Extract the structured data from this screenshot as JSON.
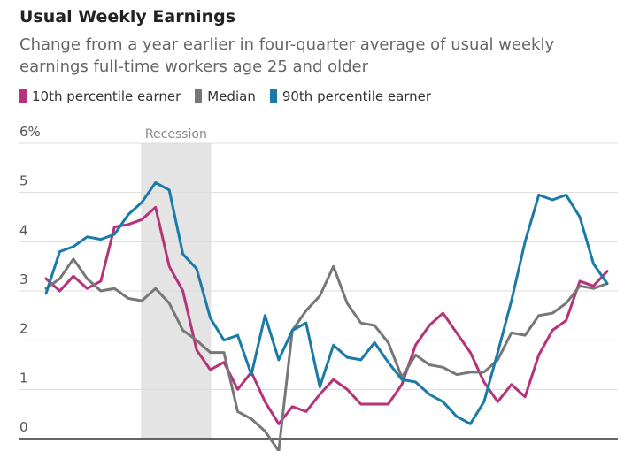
{
  "chart_data": {
    "type": "line",
    "title": "Usual Weekly Earnings",
    "subtitle": "Change from a year earlier in four-quarter average of usual weekly earnings full-time workers age 25 and older",
    "ylim": [
      0,
      6
    ],
    "yticks": [
      "6%",
      "5",
      "4",
      "3",
      "2",
      "1",
      "0"
    ],
    "ytick_values": [
      6,
      5,
      4,
      3,
      2,
      1,
      0
    ],
    "grid": true,
    "legend_position": "top-left",
    "shaded_band": {
      "label": "Recession",
      "start_index": 7,
      "end_index": 12
    },
    "series": [
      {
        "name": "10th percentile earner",
        "color": "#b5337a",
        "values": [
          3.25,
          3.0,
          3.3,
          3.05,
          3.2,
          4.3,
          4.35,
          4.45,
          4.7,
          3.5,
          3.0,
          1.8,
          1.4,
          1.55,
          1.0,
          1.35,
          0.75,
          0.3,
          0.65,
          0.55,
          0.9,
          1.2,
          1.0,
          0.7,
          0.7,
          0.7,
          1.1,
          1.9,
          2.3,
          2.55,
          2.15,
          1.75,
          1.15,
          0.75,
          1.1,
          0.85,
          1.7,
          2.2,
          2.4,
          3.2,
          3.1,
          3.4
        ]
      },
      {
        "name": "Median",
        "color": "#777777",
        "values": [
          3.05,
          3.25,
          3.65,
          3.25,
          3.0,
          3.05,
          2.85,
          2.8,
          3.05,
          2.75,
          2.2,
          2.0,
          1.75,
          1.75,
          0.55,
          0.4,
          0.15,
          -0.25,
          2.2,
          2.6,
          2.9,
          3.5,
          2.75,
          2.35,
          2.3,
          1.95,
          1.25,
          1.7,
          1.5,
          1.45,
          1.3,
          1.35,
          1.35,
          1.6,
          2.15,
          2.1,
          2.5,
          2.55,
          2.75,
          3.1,
          3.05,
          3.15
        ]
      },
      {
        "name": "90th percentile earner",
        "color": "#1a7aa8",
        "values": [
          2.95,
          3.8,
          3.9,
          4.1,
          4.05,
          4.15,
          4.55,
          4.8,
          5.2,
          5.05,
          3.75,
          3.45,
          2.45,
          2.0,
          2.1,
          1.3,
          2.5,
          1.6,
          2.2,
          2.35,
          1.05,
          1.9,
          1.65,
          1.6,
          1.95,
          1.55,
          1.2,
          1.15,
          0.9,
          0.75,
          0.45,
          0.3,
          0.75,
          1.75,
          2.8,
          4.0,
          4.95,
          4.85,
          4.95,
          4.5,
          3.55,
          3.15
        ]
      }
    ]
  }
}
